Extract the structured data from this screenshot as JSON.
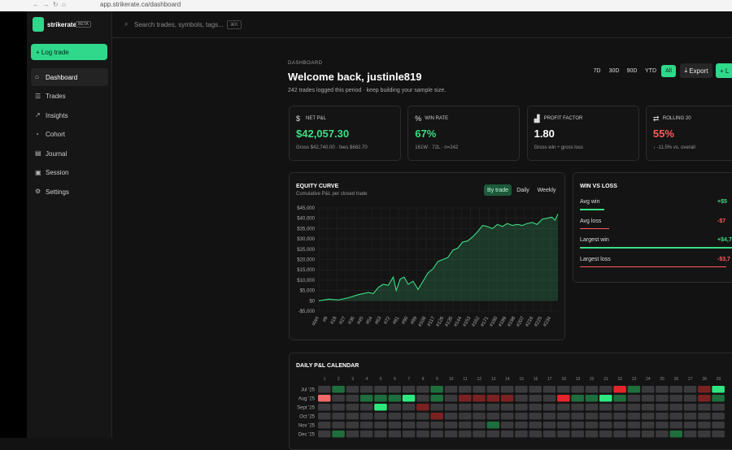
{
  "browser": {
    "url": "app.strikerate.ca/dashboard"
  },
  "header": {
    "brand": "strikerate",
    "badge": "BETA",
    "search": "Search trades, symbols, tags...",
    "shortcut": "⌘K"
  },
  "sidebar": {
    "button": "Log trade",
    "nav": [
      "Dashboard",
      "Trades",
      "Insights",
      "Cohort",
      "Journal",
      "Session",
      "Settings"
    ],
    "active": 0
  },
  "page": {
    "eyebrow": "DASHBOARD",
    "title": "Welcome back, justinle819",
    "subtitle": "242 trades logged this period · keep building your sample size.",
    "ranges": [
      "7D",
      "30D",
      "90D",
      "YTD",
      "All"
    ],
    "active_range": 4,
    "export": "Export",
    "log": "L"
  },
  "cards": [
    {
      "icon": "$",
      "label": "NET P&L",
      "value": "$42,057.30",
      "note": "Gross $42,740.00 · fees $682.70",
      "color": "#3ddc84"
    },
    {
      "icon": "%",
      "label": "WIN RATE",
      "value": "67%",
      "note": "161W · 72L · n=242",
      "color": "#3ddc84"
    },
    {
      "icon": "▟",
      "label": "PROFIT FACTOR",
      "value": "1.80",
      "note": "Gross win ÷ gross loss",
      "color": "#ffffff"
    },
    {
      "icon": "⇄",
      "label": "ROLLING 20",
      "value": "55%",
      "note": "↓ -11.5% vs. overall",
      "color": "#ff5a5a"
    }
  ],
  "chart_data": {
    "type": "line",
    "title": "EQUITY CURVE",
    "subtitle": "Cumulative P&L per closed trade",
    "toggles": [
      "By trade",
      "Daily",
      "Weekly"
    ],
    "active_toggle": 0,
    "color": "#3ddc84",
    "x": [
      0,
      10,
      20,
      30,
      40,
      50,
      55,
      60,
      65,
      70,
      75,
      78,
      82,
      86,
      90,
      95,
      100,
      105,
      110,
      115,
      120,
      125,
      130,
      135,
      140,
      145,
      150,
      155,
      160,
      165,
      170,
      175,
      180,
      185,
      190,
      195,
      200,
      205,
      210,
      215,
      220,
      225,
      230,
      235,
      238,
      241
    ],
    "values": [
      0,
      800,
      400,
      1500,
      3000,
      4000,
      3500,
      6500,
      8000,
      7500,
      11500,
      5000,
      10500,
      11500,
      8000,
      9500,
      5500,
      9500,
      13500,
      15500,
      19000,
      20000,
      21000,
      24500,
      25500,
      28500,
      29000,
      31000,
      33500,
      36500,
      36000,
      35000,
      37000,
      36000,
      37500,
      36500,
      37000,
      36500,
      37500,
      38000,
      37000,
      39500,
      40000,
      40500,
      39000,
      42057.3
    ],
    "xlim": [
      0,
      241
    ],
    "ylim": [
      -5000,
      45000
    ],
    "yticks": [
      {
        "value": -5000,
        "label": "-$5,000"
      },
      {
        "value": 0,
        "label": "$0"
      },
      {
        "value": 5000,
        "label": "$5,000"
      },
      {
        "value": 10000,
        "label": "$10,000"
      },
      {
        "value": 15000,
        "label": "$15,000"
      },
      {
        "value": 20000,
        "label": "$20,000"
      },
      {
        "value": 25000,
        "label": "$25,000"
      },
      {
        "value": 30000,
        "label": "$30,000"
      },
      {
        "value": 35000,
        "label": "$35,000"
      },
      {
        "value": 40000,
        "label": "$40,000"
      },
      {
        "value": 45000,
        "label": "$45,000"
      }
    ],
    "xticks": [
      {
        "value": 0,
        "label": "start"
      },
      {
        "value": 9,
        "label": "#9"
      },
      {
        "value": 18,
        "label": "#18"
      },
      {
        "value": 27,
        "label": "#27"
      },
      {
        "value": 36,
        "label": "#36"
      },
      {
        "value": 45,
        "label": "#45"
      },
      {
        "value": 54,
        "label": "#54"
      },
      {
        "value": 63,
        "label": "#63"
      },
      {
        "value": 72,
        "label": "#72"
      },
      {
        "value": 81,
        "label": "#81"
      },
      {
        "value": 90,
        "label": "#90"
      },
      {
        "value": 99,
        "label": "#99"
      },
      {
        "value": 108,
        "label": "#108"
      },
      {
        "value": 117,
        "label": "#117"
      },
      {
        "value": 126,
        "label": "#126"
      },
      {
        "value": 135,
        "label": "#135"
      },
      {
        "value": 144,
        "label": "#144"
      },
      {
        "value": 153,
        "label": "#153"
      },
      {
        "value": 162,
        "label": "#162"
      },
      {
        "value": 171,
        "label": "#171"
      },
      {
        "value": 180,
        "label": "#180"
      },
      {
        "value": 189,
        "label": "#189"
      },
      {
        "value": 198,
        "label": "#198"
      },
      {
        "value": 207,
        "label": "#207"
      },
      {
        "value": 216,
        "label": "#216"
      },
      {
        "value": 225,
        "label": "#225"
      },
      {
        "value": 234,
        "label": "#234"
      }
    ],
    "grid": true
  },
  "win_loss": {
    "title": "WIN VS LOSS",
    "rows": [
      {
        "label": "Avg win",
        "value": "+$5",
        "color": "#3ddc84"
      },
      {
        "label": "Avg loss",
        "value": "-$7",
        "color": "#ff5a5a"
      },
      {
        "label": "Largest win",
        "value": "+$4,7",
        "color": "#3ddc84"
      },
      {
        "label": "Largest loss",
        "value": "-$3,7",
        "color": "#ff5a5a"
      }
    ]
  },
  "calendar": {
    "title": "DAILY P&L CALENDAR",
    "days": [
      1,
      2,
      3,
      4,
      5,
      6,
      7,
      8,
      9,
      10,
      11,
      12,
      13,
      14,
      15,
      16,
      17,
      18,
      19,
      20,
      21,
      22,
      23,
      24,
      25,
      26,
      27,
      28,
      29
    ],
    "months": [
      "Jul '25",
      "Aug '25",
      "Sept '25",
      "Oct '25",
      "Nov '25",
      "Dec '25"
    ],
    "values": [
      [
        null,
        300,
        null,
        null,
        null,
        null,
        null,
        null,
        300,
        null,
        null,
        null,
        null,
        null,
        null,
        null,
        null,
        null,
        null,
        null,
        null,
        -900,
        300,
        null,
        null,
        null,
        null,
        -300,
        900
      ],
      [
        -600,
        null,
        null,
        300,
        300,
        300,
        900,
        null,
        300,
        null,
        -300,
        -300,
        -300,
        -300,
        null,
        null,
        null,
        -900,
        300,
        300,
        900,
        300,
        null,
        null,
        null,
        null,
        null,
        -300,
        300
      ],
      [
        null,
        null,
        null,
        null,
        900,
        null,
        null,
        -300,
        null,
        null,
        null,
        null,
        null,
        null,
        null,
        null,
        null,
        null,
        null,
        null,
        null,
        null,
        null,
        null,
        null,
        null,
        null,
        null,
        null
      ],
      [
        null,
        null,
        null,
        null,
        null,
        null,
        null,
        null,
        -300,
        null,
        null,
        null,
        null,
        null,
        null,
        null,
        null,
        null,
        null,
        null,
        null,
        null,
        null,
        null,
        null,
        null,
        null,
        null,
        null
      ],
      [
        null,
        null,
        null,
        null,
        null,
        null,
        null,
        null,
        null,
        null,
        null,
        null,
        300,
        null,
        null,
        null,
        null,
        null,
        null,
        null,
        null,
        null,
        null,
        null,
        null,
        null,
        null,
        null,
        null
      ],
      [
        null,
        300,
        null,
        null,
        null,
        null,
        null,
        null,
        null,
        null,
        null,
        null,
        null,
        null,
        null,
        null,
        null,
        null,
        null,
        null,
        null,
        null,
        null,
        null,
        null,
        300,
        null,
        null,
        null
      ]
    ]
  }
}
